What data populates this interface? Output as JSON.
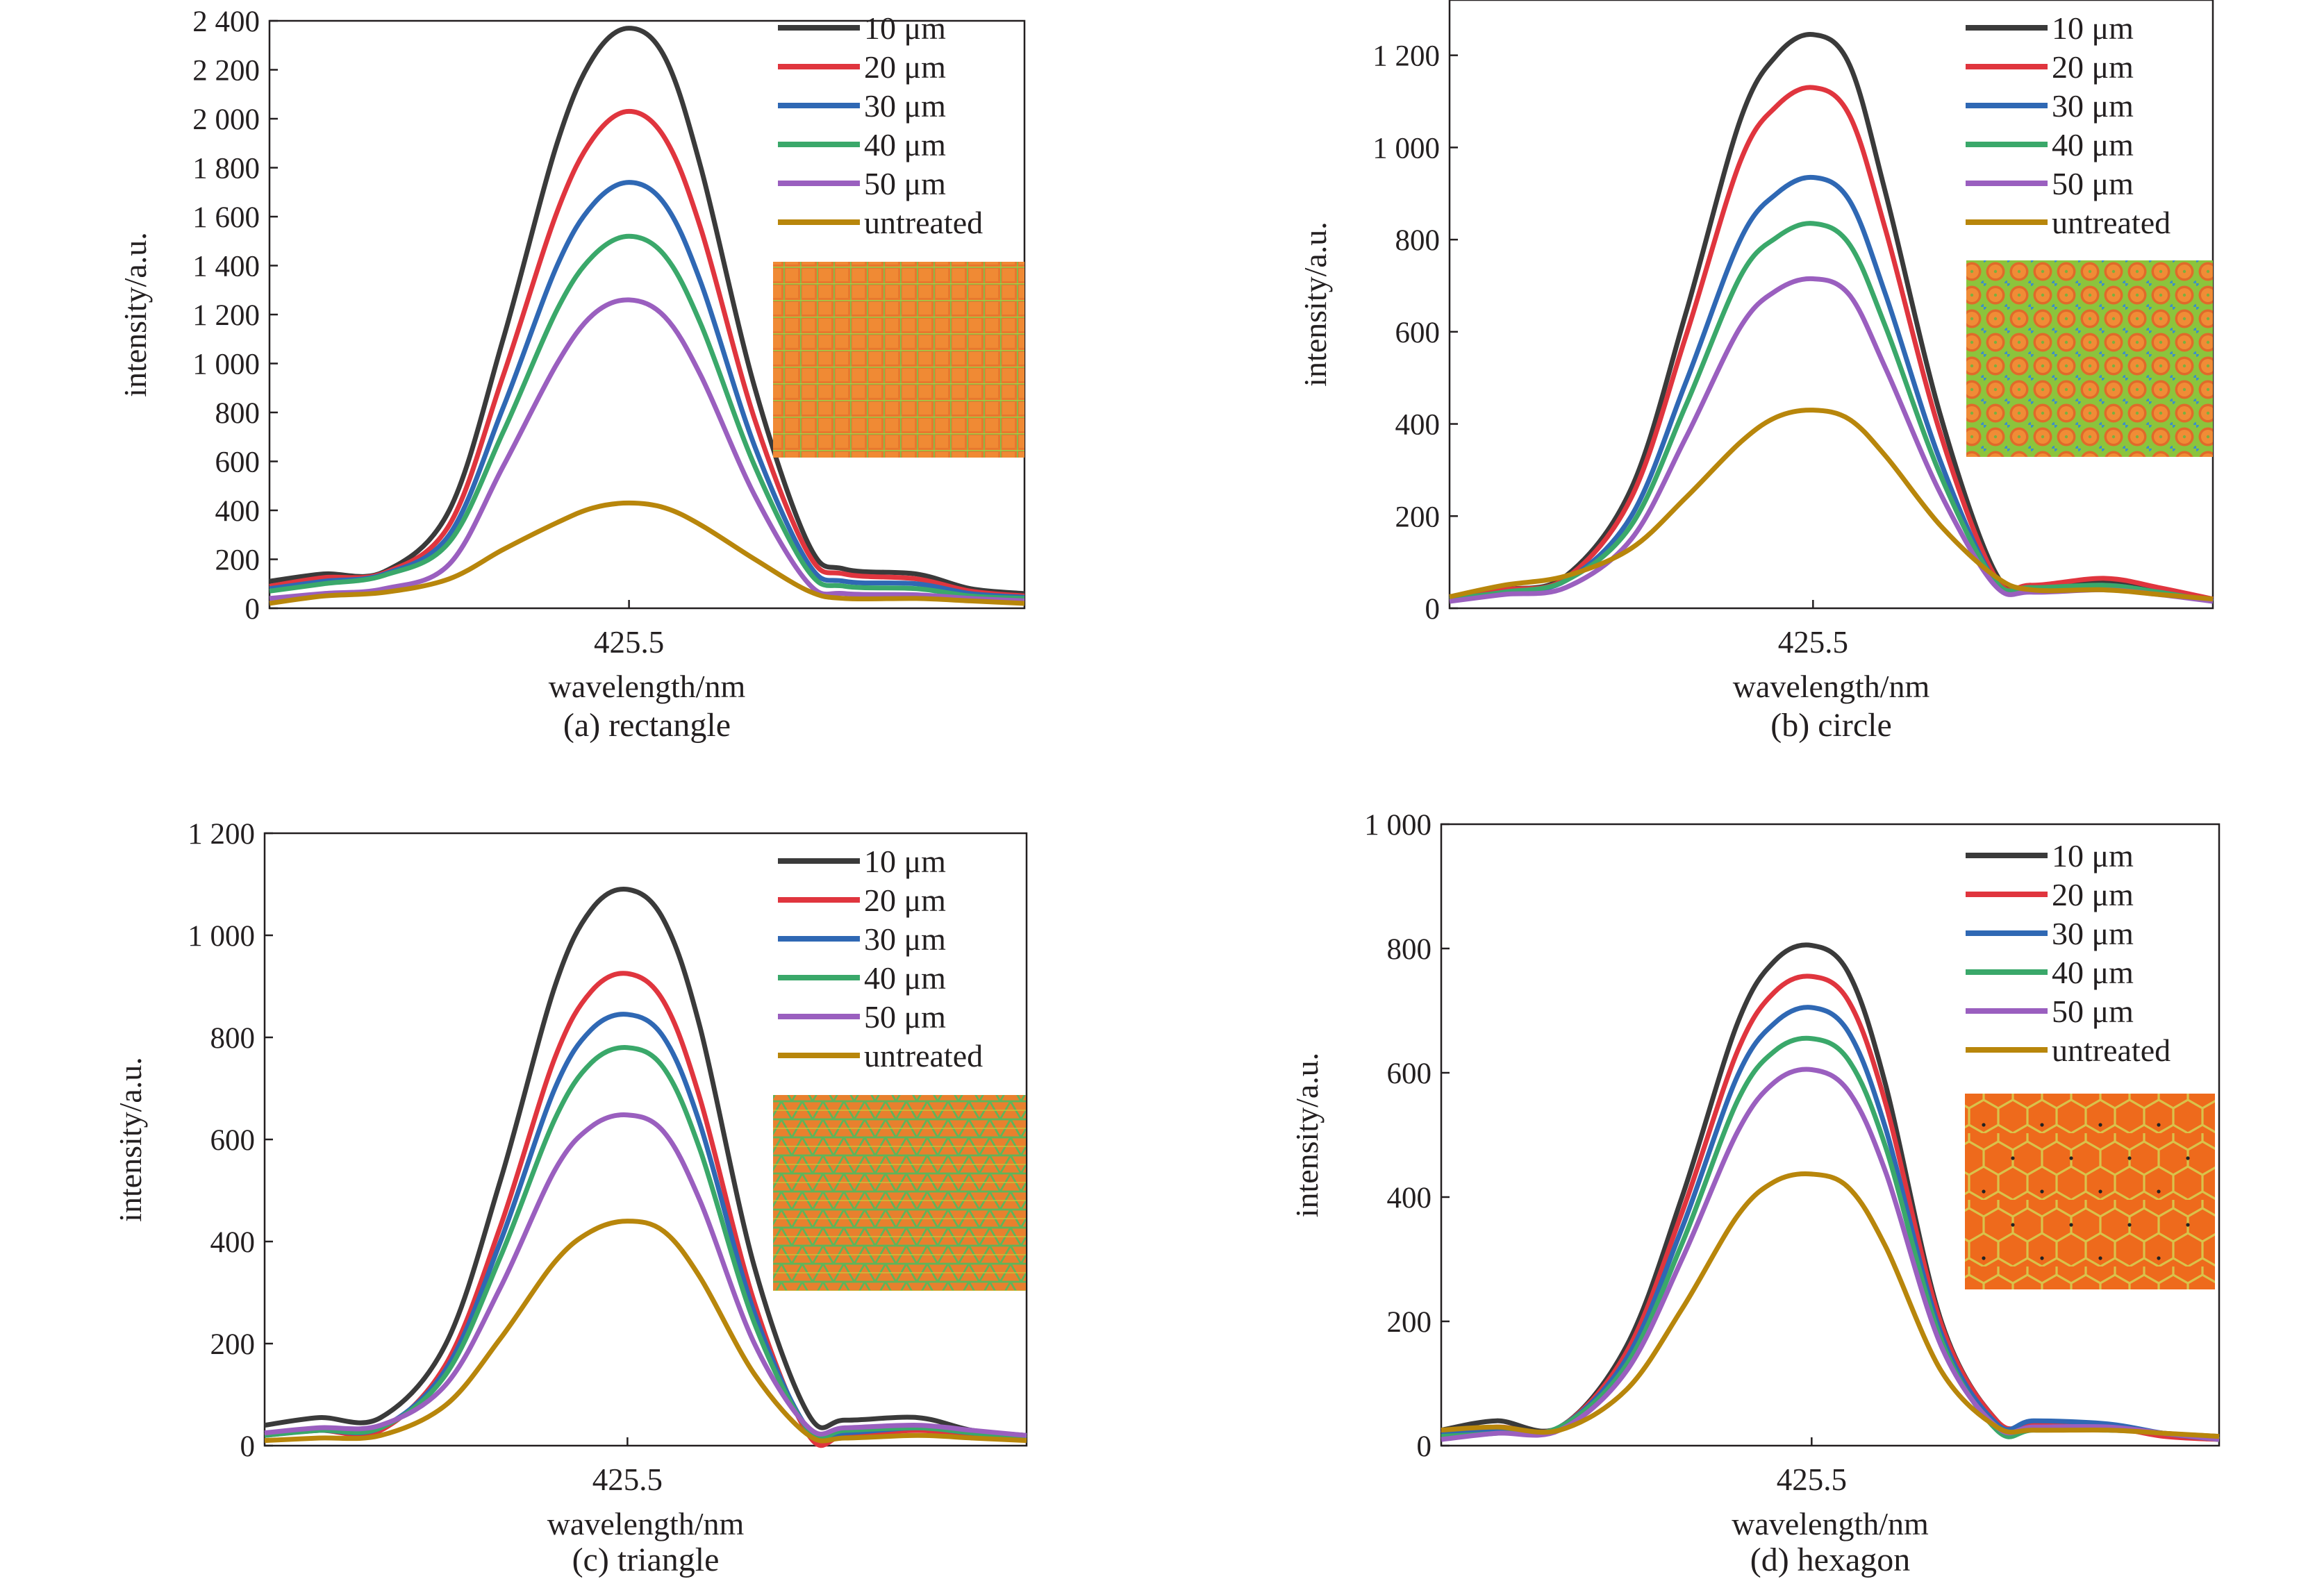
{
  "figure": {
    "panels": [
      {
        "caption": "(a) rectangle",
        "inset_pattern": "rectangle-grid"
      },
      {
        "caption": "(b) circle",
        "inset_pattern": "circle-array"
      },
      {
        "caption": "(c) triangle",
        "inset_pattern": "triangle-grid"
      },
      {
        "caption": "(d) hexagon",
        "inset_pattern": "hexagon-grid"
      }
    ]
  },
  "chart_data": [
    {
      "type": "line",
      "title": "(a) rectangle",
      "xlabel": "wavelength/nm",
      "ylabel": "intensity/a.u.",
      "x_ticks": [
        425.5
      ],
      "x_tick_labels": [
        "425.5"
      ],
      "xlim": [
        424.5,
        426.6
      ],
      "ylim": [
        0,
        2400
      ],
      "y_ticks": [
        0,
        200,
        400,
        600,
        800,
        1000,
        1200,
        1400,
        1600,
        1800,
        2000,
        2200,
        2400
      ],
      "y_tick_labels": [
        "0",
        "200",
        "400",
        "600",
        "800",
        "1 000",
        "1 200",
        "1 400",
        "1 600",
        "1 800",
        "2 000",
        "2 200",
        "2 400"
      ],
      "legend_position": "top-right",
      "x": [
        424.5,
        424.65,
        424.82,
        425.0,
        425.15,
        425.3,
        425.4,
        425.5,
        425.6,
        425.7,
        425.85,
        426.0,
        426.1,
        426.3,
        426.45,
        426.6
      ],
      "series": [
        {
          "name": "10 μm",
          "color": "#3a3a3a",
          "values": [
            110,
            140,
            150,
            400,
            1100,
            1900,
            2250,
            2370,
            2250,
            1800,
            900,
            260,
            160,
            140,
            80,
            60
          ]
        },
        {
          "name": "20 μm",
          "color": "#e0353e",
          "values": [
            90,
            125,
            145,
            340,
            950,
            1620,
            1920,
            2030,
            1920,
            1550,
            770,
            220,
            140,
            120,
            70,
            50
          ]
        },
        {
          "name": "30 μm",
          "color": "#2f68b4",
          "values": [
            80,
            110,
            140,
            300,
            820,
            1400,
            1650,
            1740,
            1650,
            1330,
            660,
            180,
            110,
            100,
            60,
            45
          ]
        },
        {
          "name": "40 μm",
          "color": "#3aa86a",
          "values": [
            70,
            100,
            135,
            270,
            720,
            1220,
            1440,
            1520,
            1440,
            1160,
            580,
            150,
            90,
            80,
            50,
            40
          ]
        },
        {
          "name": "50 μm",
          "color": "#9a5fbf",
          "values": [
            40,
            60,
            80,
            180,
            580,
            1000,
            1200,
            1260,
            1190,
            950,
            460,
            100,
            60,
            55,
            40,
            30
          ]
        },
        {
          "name": "untreated",
          "color": "#b8860b",
          "values": [
            20,
            50,
            65,
            120,
            240,
            350,
            410,
            430,
            410,
            340,
            200,
            70,
            40,
            40,
            30,
            20
          ]
        }
      ]
    },
    {
      "type": "line",
      "title": "(b) circle",
      "xlabel": "wavelength/nm",
      "ylabel": "intensity/a.u.",
      "x_ticks": [
        425.5
      ],
      "x_tick_labels": [
        "425.5"
      ],
      "xlim": [
        424.5,
        426.6
      ],
      "ylim": [
        0,
        1320
      ],
      "y_ticks": [
        0,
        200,
        400,
        600,
        800,
        1000,
        1200
      ],
      "y_tick_labels": [
        "0",
        "200",
        "400",
        "600",
        "800",
        "1 000",
        "1 200"
      ],
      "legend_position": "top-right",
      "x": [
        424.5,
        424.65,
        424.82,
        425.0,
        425.15,
        425.3,
        425.4,
        425.5,
        425.6,
        425.7,
        425.85,
        426.0,
        426.1,
        426.3,
        426.45,
        426.6
      ],
      "series": [
        {
          "name": "10 μm",
          "color": "#3a3a3a",
          "values": [
            20,
            40,
            70,
            260,
            640,
            1060,
            1200,
            1245,
            1180,
            900,
            420,
            80,
            45,
            55,
            40,
            20
          ]
        },
        {
          "name": "20 μm",
          "color": "#e0353e",
          "values": [
            20,
            40,
            65,
            240,
            590,
            970,
            1090,
            1130,
            1070,
            820,
            380,
            70,
            50,
            65,
            45,
            20
          ]
        },
        {
          "name": "30 μm",
          "color": "#2f68b4",
          "values": [
            20,
            35,
            60,
            200,
            490,
            800,
            900,
            935,
            885,
            680,
            320,
            60,
            40,
            50,
            35,
            15
          ]
        },
        {
          "name": "40 μm",
          "color": "#3aa86a",
          "values": [
            20,
            35,
            60,
            180,
            440,
            720,
            805,
            835,
            790,
            610,
            290,
            60,
            45,
            50,
            35,
            15
          ]
        },
        {
          "name": "50 μm",
          "color": "#9a5fbf",
          "values": [
            15,
            30,
            45,
            150,
            370,
            610,
            690,
            715,
            680,
            520,
            250,
            50,
            35,
            40,
            30,
            15
          ]
        },
        {
          "name": "untreated",
          "color": "#b8860b",
          "values": [
            25,
            50,
            70,
            130,
            240,
            360,
            415,
            430,
            410,
            330,
            180,
            70,
            40,
            40,
            30,
            20
          ]
        }
      ]
    },
    {
      "type": "line",
      "title": "(c) triangle",
      "xlabel": "wavelength/nm",
      "ylabel": "intensity/a.u.",
      "x_ticks": [
        425.5
      ],
      "x_tick_labels": [
        "425.5"
      ],
      "xlim": [
        424.5,
        426.6
      ],
      "ylim": [
        0,
        1200
      ],
      "y_ticks": [
        0,
        200,
        400,
        600,
        800,
        1000,
        1200
      ],
      "y_tick_labels": [
        "0",
        "200",
        "400",
        "600",
        "800",
        "1 000",
        "1 200"
      ],
      "legend_position": "top-right",
      "x": [
        424.5,
        424.65,
        424.82,
        425.0,
        425.15,
        425.3,
        425.4,
        425.5,
        425.6,
        425.7,
        425.85,
        426.0,
        426.1,
        426.3,
        426.45,
        426.6
      ],
      "series": [
        {
          "name": "10 μm",
          "color": "#3a3a3a",
          "values": [
            40,
            55,
            55,
            200,
            520,
            900,
            1050,
            1090,
            1030,
            820,
            350,
            60,
            50,
            55,
            30,
            20
          ]
        },
        {
          "name": "20 μm",
          "color": "#e0353e",
          "values": [
            20,
            30,
            30,
            160,
            430,
            760,
            890,
            925,
            870,
            680,
            280,
            20,
            20,
            30,
            20,
            15
          ]
        },
        {
          "name": "30 μm",
          "color": "#2f68b4",
          "values": [
            25,
            30,
            35,
            150,
            400,
            700,
            815,
            845,
            800,
            630,
            260,
            30,
            25,
            35,
            25,
            20
          ]
        },
        {
          "name": "40 μm",
          "color": "#3aa86a",
          "values": [
            20,
            30,
            35,
            140,
            370,
            640,
            750,
            780,
            740,
            580,
            240,
            30,
            30,
            35,
            25,
            15
          ]
        },
        {
          "name": "50 μm",
          "color": "#9a5fbf",
          "values": [
            25,
            35,
            40,
            120,
            310,
            540,
            625,
            648,
            615,
            480,
            200,
            35,
            35,
            40,
            30,
            20
          ]
        },
        {
          "name": "untreated",
          "color": "#b8860b",
          "values": [
            10,
            15,
            20,
            80,
            210,
            360,
            420,
            440,
            420,
            330,
            140,
            20,
            15,
            20,
            15,
            10
          ]
        }
      ]
    },
    {
      "type": "line",
      "title": "(d) hexagon",
      "xlabel": "wavelength/nm",
      "ylabel": "intensity/a.u.",
      "x_ticks": [
        425.5
      ],
      "x_tick_labels": [
        "425.5"
      ],
      "xlim": [
        424.5,
        426.6
      ],
      "ylim": [
        0,
        1000
      ],
      "y_ticks": [
        0,
        200,
        400,
        600,
        800,
        1000
      ],
      "y_tick_labels": [
        "0",
        "200",
        "400",
        "600",
        "800",
        "1 000"
      ],
      "legend_position": "top-right",
      "x": [
        424.5,
        424.65,
        424.82,
        425.0,
        425.15,
        425.3,
        425.4,
        425.5,
        425.6,
        425.7,
        425.85,
        426.0,
        426.1,
        426.3,
        426.45,
        426.6
      ],
      "series": [
        {
          "name": "10 μm",
          "color": "#3a3a3a",
          "values": [
            25,
            40,
            30,
            160,
            400,
            680,
            780,
            805,
            760,
            580,
            200,
            40,
            30,
            30,
            20,
            15
          ]
        },
        {
          "name": "20 μm",
          "color": "#e0353e",
          "values": [
            20,
            30,
            30,
            150,
            375,
            635,
            730,
            755,
            715,
            550,
            195,
            40,
            35,
            30,
            15,
            10
          ]
        },
        {
          "name": "30 μm",
          "color": "#2f68b4",
          "values": [
            20,
            25,
            30,
            140,
            350,
            595,
            680,
            705,
            665,
            510,
            180,
            35,
            40,
            35,
            20,
            10
          ]
        },
        {
          "name": "40 μm",
          "color": "#3aa86a",
          "values": [
            15,
            20,
            30,
            130,
            325,
            555,
            635,
            655,
            620,
            480,
            170,
            25,
            25,
            25,
            20,
            10
          ]
        },
        {
          "name": "50 μm",
          "color": "#9a5fbf",
          "values": [
            10,
            20,
            25,
            120,
            300,
            505,
            585,
            605,
            570,
            440,
            160,
            30,
            30,
            30,
            20,
            10
          ]
        },
        {
          "name": "untreated",
          "color": "#b8860b",
          "values": [
            25,
            30,
            25,
            90,
            220,
            370,
            425,
            437,
            415,
            320,
            120,
            30,
            25,
            25,
            20,
            15
          ]
        }
      ]
    }
  ]
}
